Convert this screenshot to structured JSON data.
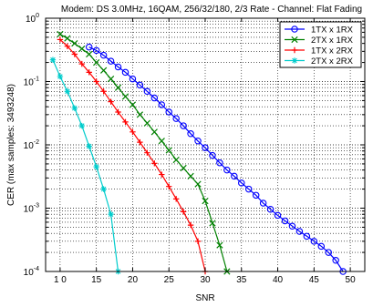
{
  "chart_data": {
    "type": "line",
    "title": "Modem: DS 3.0MHz, 16QAM, 256/32/180, 2/3 Rate - Channel: Flat Fading",
    "xlabel": "SNR",
    "ylabel": "CER (max samples: 3493248)",
    "xlim": [
      8,
      52
    ],
    "ylim": [
      0.0001,
      1
    ],
    "yscale": "log",
    "grid": true,
    "legend_position": "top-right",
    "x_ticks": [
      10,
      15,
      20,
      25,
      30,
      35,
      40,
      45,
      50
    ],
    "x_tick_labels": [
      "1 0",
      "15",
      "20",
      "25",
      "30",
      "35",
      "40",
      "45",
      "50"
    ],
    "y_ticks": [
      {
        "value": 1,
        "base": "10",
        "exp": "0"
      },
      {
        "value": 0.1,
        "base": "10",
        "exp": "-1"
      },
      {
        "value": 0.01,
        "base": "10",
        "exp": "-2"
      },
      {
        "value": 0.001,
        "base": "10",
        "exp": "-3"
      },
      {
        "value": 0.0001,
        "base": "10",
        "exp": "-4"
      }
    ],
    "series": [
      {
        "name": "1TX x 1RX",
        "color": "#0000ff",
        "marker": "circle",
        "x": [
          14,
          15,
          16,
          17,
          18,
          19,
          20,
          21,
          22,
          23,
          24,
          25,
          26,
          27,
          28,
          29,
          30,
          31,
          32,
          33,
          34,
          35,
          36,
          37,
          38,
          39,
          40,
          41,
          42,
          43,
          44,
          45,
          46,
          47,
          48,
          49
        ],
        "y": [
          0.35,
          0.31,
          0.26,
          0.21,
          0.17,
          0.14,
          0.11,
          0.088,
          0.07,
          0.055,
          0.043,
          0.033,
          0.026,
          0.02,
          0.015,
          0.0115,
          0.009,
          0.0068,
          0.0052,
          0.004,
          0.0032,
          0.0025,
          0.002,
          0.0016,
          0.0012,
          0.00096,
          0.00077,
          0.00063,
          0.00052,
          0.00043,
          0.00036,
          0.0003,
          0.00025,
          0.0002,
          0.00015,
          0.0001
        ]
      },
      {
        "name": "2TX x 1RX",
        "color": "#008000",
        "marker": "x",
        "x": [
          10,
          11,
          12,
          13,
          14,
          15,
          16,
          17,
          18,
          19,
          20,
          21,
          22,
          23,
          24,
          25,
          26,
          27,
          28,
          29,
          30,
          31,
          32,
          33
        ],
        "y": [
          0.56,
          0.48,
          0.4,
          0.33,
          0.27,
          0.2,
          0.15,
          0.11,
          0.08,
          0.058,
          0.043,
          0.03,
          0.022,
          0.016,
          0.0115,
          0.0082,
          0.0058,
          0.0043,
          0.0032,
          0.0024,
          0.0013,
          0.00058,
          0.00026,
          0.0001
        ]
      },
      {
        "name": "1TX x 2RX",
        "color": "#ff0000",
        "marker": "plus",
        "x": [
          10,
          11,
          12,
          13,
          14,
          15,
          16,
          17,
          18,
          19,
          20,
          21,
          22,
          23,
          24,
          25,
          26,
          27,
          28,
          29,
          30
        ],
        "y": [
          0.46,
          0.36,
          0.27,
          0.19,
          0.14,
          0.1,
          0.07,
          0.048,
          0.033,
          0.023,
          0.016,
          0.011,
          0.0075,
          0.0051,
          0.0034,
          0.0022,
          0.0014,
          0.00088,
          0.00054,
          0.0003,
          0.0001
        ]
      },
      {
        "name": "2TX x 2RX",
        "color": "#00cccc",
        "marker": "star",
        "x": [
          9,
          10,
          11,
          12,
          13,
          14,
          15,
          16,
          17,
          18
        ],
        "y": [
          0.22,
          0.12,
          0.07,
          0.038,
          0.02,
          0.0095,
          0.0045,
          0.002,
          0.0008,
          0.0001
        ]
      }
    ]
  }
}
